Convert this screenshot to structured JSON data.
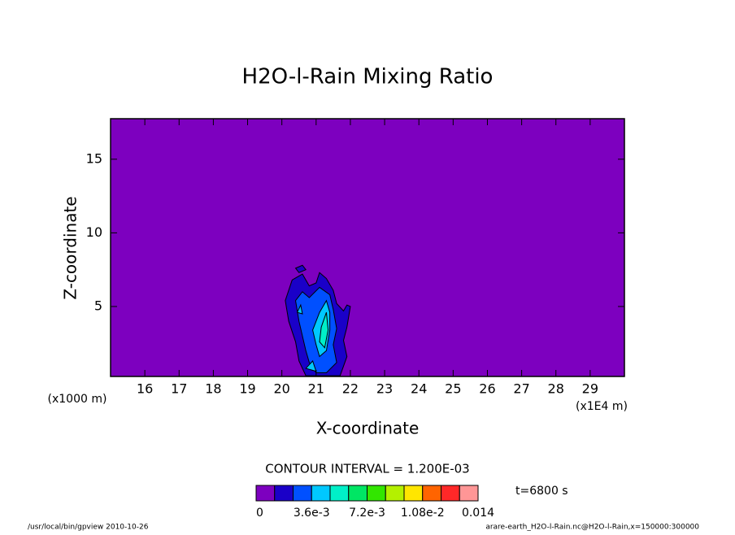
{
  "chart_data": {
    "type": "contour",
    "title": "H2O-l-Rain Mixing Ratio",
    "x_label": "X-coordinate",
    "y_label": "Z-coordinate",
    "x_unit": "(x1E4 m)",
    "y_unit": "(x1000 m)",
    "xlim": [
      15,
      30
    ],
    "ylim": [
      0.25,
      17.75
    ],
    "xticks": [
      16,
      17,
      18,
      19,
      20,
      21,
      22,
      23,
      24,
      25,
      26,
      27,
      28,
      29
    ],
    "yticks": [
      5,
      10,
      15
    ],
    "background_level": 0,
    "contours": [
      {
        "level": 0.0012,
        "points": [
          [
            20.3,
            6.8
          ],
          [
            20.6,
            7.2
          ],
          [
            20.8,
            6.4
          ],
          [
            21.0,
            6.6
          ],
          [
            21.1,
            7.3
          ],
          [
            21.3,
            6.9
          ],
          [
            21.5,
            6.1
          ],
          [
            21.6,
            5.2
          ],
          [
            21.8,
            4.7
          ],
          [
            21.9,
            5.1
          ],
          [
            22.0,
            5.0
          ],
          [
            21.9,
            3.6
          ],
          [
            21.8,
            2.7
          ],
          [
            21.9,
            1.6
          ],
          [
            21.7,
            0.3
          ],
          [
            21.0,
            0.3
          ],
          [
            20.7,
            0.3
          ],
          [
            20.5,
            1.3
          ],
          [
            20.4,
            2.6
          ],
          [
            20.2,
            4.0
          ],
          [
            20.1,
            5.4
          ]
        ]
      },
      {
        "level": 0.0012,
        "points": [
          [
            20.4,
            7.6
          ],
          [
            20.6,
            7.8
          ],
          [
            20.7,
            7.5
          ],
          [
            20.5,
            7.3
          ]
        ]
      },
      {
        "level": 0.0024,
        "points": [
          [
            20.4,
            5.4
          ],
          [
            20.6,
            6.0
          ],
          [
            20.8,
            5.6
          ],
          [
            21.1,
            6.3
          ],
          [
            21.4,
            5.8
          ],
          [
            21.5,
            4.8
          ],
          [
            21.6,
            3.5
          ],
          [
            21.5,
            2.4
          ],
          [
            21.6,
            1.2
          ],
          [
            21.3,
            0.5
          ],
          [
            21.0,
            0.5
          ],
          [
            20.8,
            1.2
          ],
          [
            20.7,
            2.0
          ],
          [
            20.6,
            3.0
          ],
          [
            20.5,
            4.0
          ]
        ]
      },
      {
        "level": 0.0036,
        "points": [
          [
            21.1,
            4.6
          ],
          [
            21.3,
            5.4
          ],
          [
            21.4,
            4.6
          ],
          [
            21.4,
            3.4
          ],
          [
            21.3,
            2.0
          ],
          [
            21.1,
            1.6
          ],
          [
            21.0,
            2.4
          ],
          [
            20.9,
            3.4
          ]
        ]
      },
      {
        "level": 0.0036,
        "points": [
          [
            20.7,
            0.8
          ],
          [
            20.9,
            1.3
          ],
          [
            21.0,
            0.6
          ]
        ]
      },
      {
        "level": 0.0036,
        "points": [
          [
            20.45,
            4.6
          ],
          [
            20.55,
            5.1
          ],
          [
            20.6,
            4.5
          ]
        ]
      },
      {
        "level": 0.0048,
        "points": [
          [
            21.15,
            3.6
          ],
          [
            21.3,
            4.6
          ],
          [
            21.35,
            3.4
          ],
          [
            21.25,
            2.2
          ],
          [
            21.1,
            2.6
          ]
        ]
      }
    ],
    "colorbar": {
      "levels": [
        0,
        0.0012,
        0.0024,
        0.0036,
        0.0048,
        0.006,
        0.0072,
        0.0084,
        0.0096,
        0.0108,
        0.012,
        0.0132,
        0.0144
      ],
      "colors": [
        "#7d00bf",
        "#1a00c8",
        "#0050ff",
        "#00c8ff",
        "#00f0c8",
        "#00e664",
        "#32e600",
        "#b4f000",
        "#ffe600",
        "#ff6400",
        "#ff2828",
        "#ff9696"
      ],
      "ticks": [
        0,
        {
          "value": 0.0036,
          "label": "3.6e-3"
        },
        {
          "value": 0.0072,
          "label": "7.2e-3"
        },
        {
          "value": 0.0108,
          "label": "1.08e-2"
        },
        {
          "value": 0.0144,
          "label": "0.014"
        }
      ]
    },
    "contour_interval": "CONTOUR INTERVAL = 1.200E-03",
    "time_label": "t=6800 s",
    "footer_left": "/usr/local/bin/gpview  2010-10-26",
    "footer_right": "arare-earth_H2O-l-Rain.nc@H2O-l-Rain,x=150000:300000"
  }
}
